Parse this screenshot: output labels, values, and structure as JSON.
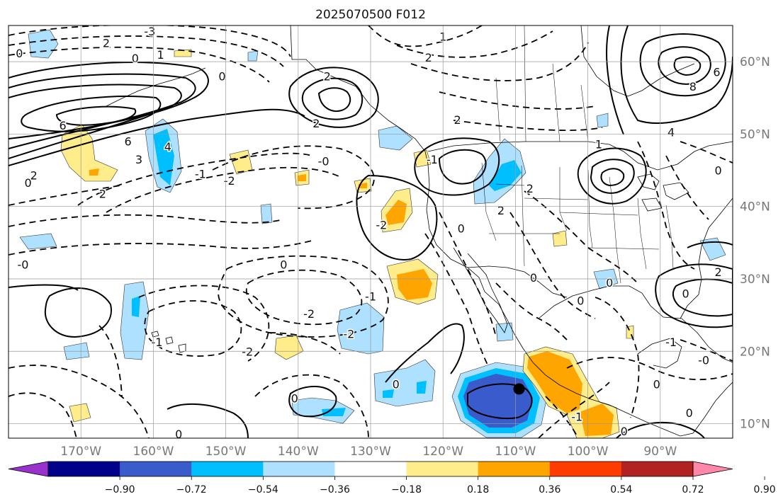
{
  "title": "2025070500 F012",
  "map": {
    "lon_range": [
      -180,
      -80
    ],
    "lat_range": [
      8,
      65
    ],
    "lon_ticks": [
      {
        "value": -170,
        "label": "170°W"
      },
      {
        "value": -160,
        "label": "160°W"
      },
      {
        "value": -150,
        "label": "150°W"
      },
      {
        "value": -140,
        "label": "140°W"
      },
      {
        "value": -130,
        "label": "130°W"
      },
      {
        "value": -120,
        "label": "120°W"
      },
      {
        "value": -110,
        "label": "110°W"
      },
      {
        "value": -100,
        "label": "100°W"
      },
      {
        "value": -90,
        "label": "90°W"
      }
    ],
    "lat_ticks": [
      {
        "value": 10,
        "label": "10°N"
      },
      {
        "value": 20,
        "label": "20°N"
      },
      {
        "value": 30,
        "label": "30°N"
      },
      {
        "value": 40,
        "label": "40°N"
      },
      {
        "value": 50,
        "label": "50°N"
      },
      {
        "value": 60,
        "label": "60°N"
      }
    ],
    "grid": true,
    "marker": {
      "lon": -109.5,
      "lat": 14.8,
      "color": "#000000"
    }
  },
  "colorbar": {
    "orientation": "horizontal",
    "extend": "both",
    "tick_labels": [
      "−0.90",
      "−0.72",
      "−0.54",
      "−0.36",
      "−0.18",
      "0.18",
      "0.36",
      "0.54",
      "0.72",
      "0.90"
    ],
    "colors": [
      "#9932cc",
      "#00008b",
      "#3a5bcc",
      "#00bfff",
      "#aee0ff",
      "#ffffff",
      "#ffec8b",
      "#ffa500",
      "#ff3c00",
      "#b22222",
      "#ff88aa"
    ]
  },
  "contour_labels": [
    {
      "text": "-3",
      "lon": -160.5,
      "lat": 64.2
    },
    {
      "text": "2",
      "lon": -166.5,
      "lat": 62.6
    },
    {
      "text": "1",
      "lon": -159.0,
      "lat": 61.0
    },
    {
      "text": "0",
      "lon": -178.5,
      "lat": 61.2
    },
    {
      "text": "0",
      "lon": -162.5,
      "lat": 60.5
    },
    {
      "text": "0",
      "lon": -150.5,
      "lat": 58.0
    },
    {
      "text": "6",
      "lon": -172.5,
      "lat": 51.2
    },
    {
      "text": "6",
      "lon": -163.5,
      "lat": 49.0
    },
    {
      "text": "4",
      "lon": -158.0,
      "lat": 48.3
    },
    {
      "text": "3",
      "lon": -162.0,
      "lat": 46.5
    },
    {
      "text": "2",
      "lon": -176.5,
      "lat": 44.3
    },
    {
      "text": "0",
      "lon": -177.3,
      "lat": 43.3
    },
    {
      "text": "2",
      "lon": -167.0,
      "lat": 41.8
    },
    {
      "text": "-1",
      "lon": -153.5,
      "lat": 44.5
    },
    {
      "text": "-2",
      "lon": -149.5,
      "lat": 43.6
    },
    {
      "text": "-0",
      "lon": -136.5,
      "lat": 46.3
    },
    {
      "text": "2",
      "lon": -136.0,
      "lat": 58.0
    },
    {
      "text": "2",
      "lon": -137.5,
      "lat": 51.5
    },
    {
      "text": "1",
      "lon": -120.0,
      "lat": 63.5
    },
    {
      "text": "2",
      "lon": -122.0,
      "lat": 60.6
    },
    {
      "text": "2",
      "lon": -118.0,
      "lat": 52.0
    },
    {
      "text": "-2",
      "lon": -128.5,
      "lat": 37.5
    },
    {
      "text": "-1",
      "lon": -121.5,
      "lat": 46.5
    },
    {
      "text": "0",
      "lon": -117.5,
      "lat": 37.0
    },
    {
      "text": "2",
      "lon": -112.0,
      "lat": 39.5
    },
    {
      "text": "2",
      "lon": -108.0,
      "lat": 42.5
    },
    {
      "text": "1",
      "lon": -98.5,
      "lat": 48.6
    },
    {
      "text": "4",
      "lon": -88.5,
      "lat": 50.3
    },
    {
      "text": "8",
      "lon": -85.5,
      "lat": 56.6
    },
    {
      "text": "6",
      "lon": -82.2,
      "lat": 58.6
    },
    {
      "text": "0",
      "lon": -82.0,
      "lat": 45.0
    },
    {
      "text": "0",
      "lon": -86.5,
      "lat": 28.0
    },
    {
      "text": "2",
      "lon": -82.0,
      "lat": 31.0
    },
    {
      "text": "0",
      "lon": -107.5,
      "lat": 30.2
    },
    {
      "text": "0",
      "lon": -101.0,
      "lat": 27.0
    },
    {
      "text": "0",
      "lon": -97.0,
      "lat": 29.5
    },
    {
      "text": "-0",
      "lon": -178.0,
      "lat": 32.0
    },
    {
      "text": "0",
      "lon": -142.0,
      "lat": 32.0
    },
    {
      "text": "-1",
      "lon": -130.0,
      "lat": 27.6
    },
    {
      "text": "-2",
      "lon": -138.5,
      "lat": 25.2
    },
    {
      "text": "-2",
      "lon": -147.0,
      "lat": 20.0
    },
    {
      "text": "-1",
      "lon": -159.5,
      "lat": 21.3
    },
    {
      "text": "-2",
      "lon": -133.0,
      "lat": 22.4
    },
    {
      "text": "0",
      "lon": -126.5,
      "lat": 15.5
    },
    {
      "text": "0",
      "lon": -140.5,
      "lat": 13.5
    },
    {
      "text": "0",
      "lon": -156.5,
      "lat": 8.6
    },
    {
      "text": "-1",
      "lon": -101.5,
      "lat": 11.0
    },
    {
      "text": "0",
      "lon": -90.5,
      "lat": 15.5
    },
    {
      "text": "-1",
      "lon": -88.5,
      "lat": 21.3
    },
    {
      "text": "-0",
      "lon": -84.0,
      "lat": 18.8
    },
    {
      "text": "0",
      "lon": -86.0,
      "lat": 11.5
    },
    {
      "text": "0",
      "lon": -95.0,
      "lat": 9.0
    }
  ]
}
